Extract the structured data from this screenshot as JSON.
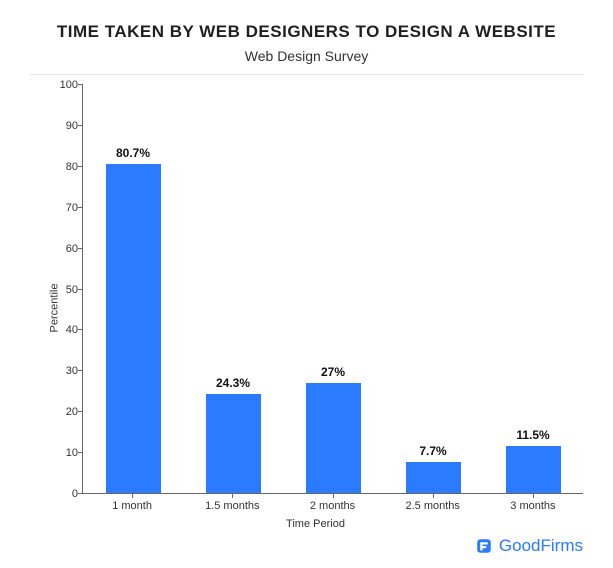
{
  "title": "TIME TAKEN BY WEB DESIGNERS TO DESIGN A WEBSITE",
  "subtitle": "Web Design Survey",
  "chart": {
    "type": "bar",
    "ylabel": "Percentile",
    "xlabel": "Time Period",
    "ylim": [
      0,
      100
    ],
    "ytick_step": 10,
    "categories": [
      "1 month",
      "1.5 months",
      "2 months",
      "2.5 months",
      "3 months"
    ],
    "values": [
      80.7,
      24.3,
      27,
      7.7,
      11.5
    ],
    "value_labels": [
      "80.7%",
      "24.3%",
      "27%",
      "7.7%",
      "11.5%"
    ],
    "bar_color": "#2a7bff",
    "bar_width": 0.55,
    "axis_color": "#666666",
    "background_color": "#ffffff",
    "label_fontsize": 12,
    "tick_fontsize": 11,
    "title_fontsize": 17,
    "subtitle_fontsize": 14
  },
  "brand": {
    "name": "GoodFirms",
    "icon_color": "#2a7bff",
    "text_color": "#2a7bff",
    "fontsize": 17
  }
}
